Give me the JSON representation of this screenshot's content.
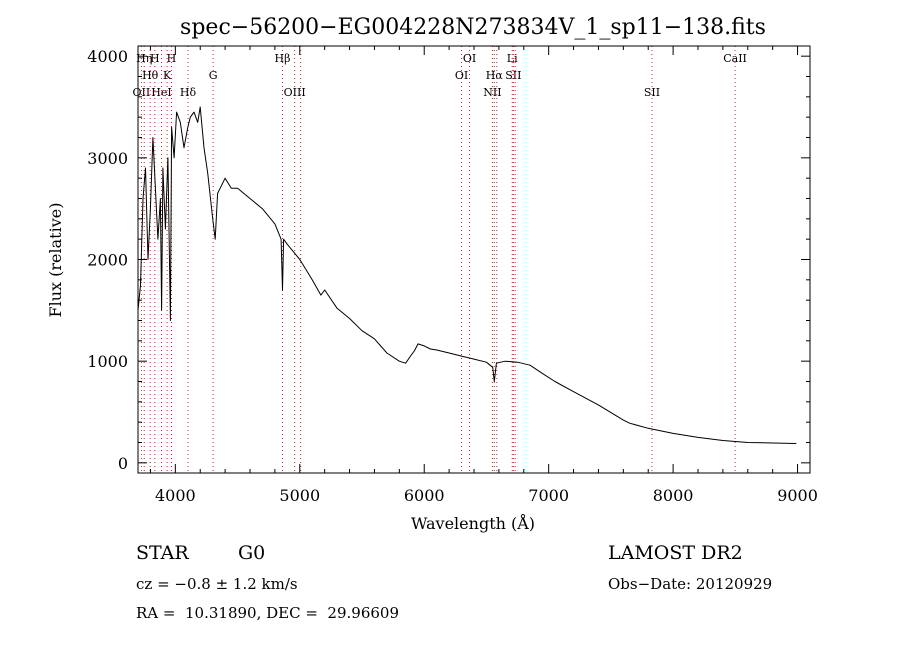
{
  "chart_data": {
    "type": "line",
    "title": "spec−56200−EG004228N273834V_1_sp11−138.fits",
    "xlabel": "Wavelength (Å)",
    "ylabel": "Flux (relative)",
    "xlim": [
      3700,
      9100
    ],
    "ylim": [
      -100,
      4100
    ],
    "xticks": [
      4000,
      5000,
      6000,
      7000,
      8000,
      9000
    ],
    "yticks": [
      0,
      1000,
      2000,
      3000,
      4000
    ],
    "xtick_labels": [
      "4000",
      "5000",
      "6000",
      "7000",
      "8000",
      "9000"
    ],
    "ytick_labels": [
      "0",
      "1000",
      "2000",
      "3000",
      "4000"
    ],
    "grid": false,
    "series": [
      {
        "x": [
          3700,
          3720,
          3740,
          3760,
          3780,
          3800,
          3820,
          3840,
          3860,
          3880,
          3890,
          3900,
          3920,
          3940,
          3960,
          3970,
          3990,
          4010,
          4040,
          4070,
          4100,
          4120,
          4150,
          4180,
          4200,
          4230,
          4260,
          4300,
          4320,
          4340,
          4360,
          4400,
          4450,
          4500,
          4600,
          4700,
          4800,
          4850,
          4861,
          4870,
          4900,
          5000,
          5100,
          5170,
          5200,
          5300,
          5400,
          5500,
          5600,
          5700,
          5800,
          5850,
          5890,
          5920,
          5950,
          6000,
          6050,
          6100,
          6200,
          6300,
          6400,
          6500,
          6550,
          6563,
          6580,
          6650,
          6750,
          6850,
          6950,
          7050,
          7200,
          7400,
          7600,
          7650,
          7800,
          8000,
          8200,
          8400,
          8600,
          8800,
          8990
        ],
        "y": [
          1500,
          1750,
          2600,
          2900,
          2000,
          2500,
          3200,
          2700,
          2200,
          2600,
          1500,
          2900,
          2300,
          3000,
          1400,
          3300,
          3000,
          3450,
          3350,
          3100,
          3300,
          3400,
          3450,
          3350,
          3500,
          3100,
          2850,
          2400,
          2200,
          2650,
          2700,
          2800,
          2700,
          2700,
          2600,
          2500,
          2350,
          2200,
          1700,
          2200,
          2150,
          2000,
          1800,
          1650,
          1700,
          1520,
          1420,
          1300,
          1220,
          1080,
          1000,
          980,
          1050,
          1100,
          1170,
          1150,
          1120,
          1110,
          1080,
          1050,
          1020,
          990,
          940,
          800,
          980,
          1000,
          990,
          960,
          880,
          800,
          700,
          570,
          420,
          390,
          340,
          290,
          250,
          220,
          200,
          195,
          190
        ]
      }
    ],
    "spectral_lines": [
      {
        "x": 3727,
        "label": "OII",
        "row": 3
      },
      {
        "x": 3750,
        "label": "Hη",
        "row": 1
      },
      {
        "x": 3798,
        "label": "Hθ",
        "row": 2
      },
      {
        "x": 3835,
        "label": "H",
        "row": 1
      },
      {
        "x": 3889,
        "label": "HeI",
        "row": 3
      },
      {
        "x": 3934,
        "label": "K",
        "row": 2
      },
      {
        "x": 3969,
        "label": "H",
        "row": 1
      },
      {
        "x": 4102,
        "label": "Hδ",
        "row": 3
      },
      {
        "x": 4304,
        "label": "G",
        "row": 2
      },
      {
        "x": 4861,
        "label": "Hβ",
        "row": 1
      },
      {
        "x": 4959,
        "label": "OIII",
        "row": 3
      },
      {
        "x": 5007,
        "label": "",
        "row": 3
      },
      {
        "x": 6300,
        "label": "OI",
        "row": 2
      },
      {
        "x": 6364,
        "label": "OI",
        "row": 1
      },
      {
        "x": 6548,
        "label": "NII",
        "row": 3
      },
      {
        "x": 6563,
        "label": "Hα",
        "row": 2
      },
      {
        "x": 6583,
        "label": "",
        "row": 3
      },
      {
        "x": 6707,
        "label": "Li",
        "row": 1
      },
      {
        "x": 6716,
        "label": "SII",
        "row": 2
      },
      {
        "x": 6731,
        "label": "",
        "row": 2
      },
      {
        "x": 7830,
        "label": "SII",
        "row": 3
      },
      {
        "x": 8498,
        "label": "CaII",
        "row": 1
      }
    ]
  },
  "footer": {
    "object_type": "STAR",
    "subclass": "G0",
    "survey": "LAMOST DR2",
    "cz": "cz = −0.8 ± 1.2 km/s",
    "obs_date": "Obs−Date: 20120929",
    "coords": "RA =  10.31890, DEC =  29.96609"
  },
  "colors": {
    "spectrum": "#000000",
    "line_markers": "#cc2222",
    "axes": "#000000"
  }
}
